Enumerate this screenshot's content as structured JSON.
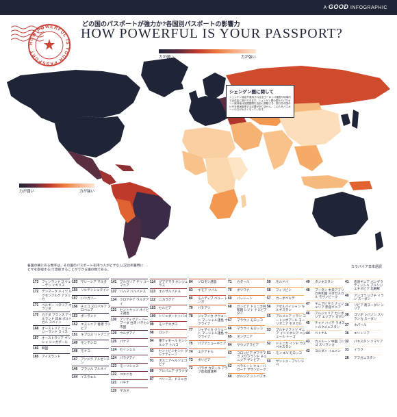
{
  "brand": {
    "prefix": "A",
    "name": "GOOD",
    "suffix": "INFOGRAPHIC"
  },
  "header": {
    "title_jp": "どの国のパスポートが強力か?各国別パスポートの影響力",
    "title_en": "HOW POWERFUL IS YOUR PASSPORT?"
  },
  "stamp": {
    "text": "HOW POWERFUL IS YOUR PASSPORT"
  },
  "scale": {
    "weak": "力が弱い",
    "strong": "力が強い"
  },
  "schengen": {
    "title": "シェンゲン圏に関して",
    "body": "シェンゲン協定が適用される全ヨーロッパ諸国や地域内では自由に旅行できます。シェンゲン圏の国々のパスポート保持者は加盟国間を自由に移動でき、旅行先の国のビザを別途取得する必要がありません。このためパスポートの力が大きくなっています。"
  },
  "intro": "各国の横にある数字は、その国のパスポートを持つ人がビザなし(又は到着時にビザを取得する)で渡航することができる国の数である。",
  "credit": "カラパイア日本語訳",
  "ranks": [
    {
      "col": 0,
      "items": [
        {
          "n": "173",
          "names": "フィンランド スウェーデン イギリス",
          "c": "#1f2437"
        },
        {
          "n": "172",
          "names": "デンマーク ドイツ ルクセンブルグ アメリカ",
          "c": "#1f2437"
        },
        {
          "n": "171",
          "names": "ベルギー イタリア オランダ",
          "c": "#1f2437"
        },
        {
          "n": "170",
          "names": "カナダ フランス アイルランド 日本 ポルトガル スペイン",
          "c": "#1f2437"
        },
        {
          "n": "168",
          "names": "オーストリア ニュージーランド スイス",
          "c": "#1f2437"
        },
        {
          "n": "167",
          "names": "オーストラリア ギリシャ シンガポール",
          "c": "#1f2437"
        },
        {
          "n": "166",
          "names": "韓国",
          "c": "#1f2437"
        },
        {
          "n": "165",
          "names": "アイスランド",
          "c": "#1f2437"
        }
      ]
    },
    {
      "col": 1,
      "items": [
        {
          "n": "153",
          "names": "マレーシア マルタ",
          "c": "#1f2437"
        },
        {
          "n": "150",
          "names": "リヒテンシュタイン",
          "c": "#1f2437"
        },
        {
          "n": "157",
          "names": "ハンガリー",
          "c": "#1f2437"
        },
        {
          "n": "156",
          "names": "チェコ スロバキア スロベニア",
          "c": "#2b2a45"
        },
        {
          "n": "153",
          "names": "ポーランド",
          "c": "#2b2a45"
        },
        {
          "n": "152",
          "names": "エストニア 香港 ラトビア",
          "c": "#2b2a45"
        },
        {
          "n": "151",
          "names": "キプロス リトアニア",
          "c": "#3a2b48"
        },
        {
          "n": "149",
          "names": "モンテシロ",
          "c": "#3a2b48"
        },
        {
          "n": "148",
          "names": "モナコ",
          "c": "#3a2b48"
        },
        {
          "n": "147",
          "names": "アンドラ アルゼンチン",
          "c": "#3a2b48"
        },
        {
          "n": "146",
          "names": "ブラジル ブルネイ",
          "c": "#3a2b48"
        },
        {
          "n": "144",
          "names": "イスラエル",
          "c": "#3a2b48"
        }
      ]
    },
    {
      "col": 2,
      "items": [
        {
          "n": "141",
          "names": "ブルガリア チリ ルーマニア",
          "c": "#4a2c45"
        },
        {
          "n": "137",
          "names": "バハマ バルバドス",
          "c": "#4a2c45"
        },
        {
          "n": "134",
          "names": "クロアチア ウルグアイ",
          "c": "#4a2c45"
        },
        {
          "n": "131",
          "names": "セントキッツ ネイビス諸島",
          "c": "#5b2d40"
        },
        {
          "n": "130",
          "names": "アンティグア・バーブーダ 台湾 バチカン市国",
          "c": "#5b2d40"
        },
        {
          "n": "129",
          "names": "ウルグアイ",
          "c": "#5b2d40"
        },
        {
          "n": "125",
          "names": "パナマ",
          "c": "#6a2e3c"
        },
        {
          "n": "124",
          "names": "セイシェル",
          "c": "#6a2e3c"
        },
        {
          "n": "124",
          "names": "パラグアイ",
          "c": "#6a2e3c"
        },
        {
          "n": "123",
          "names": "モーリシャス",
          "c": "#6a2e3c"
        },
        {
          "n": "122",
          "names": "ユエニカ",
          "c": "#6a2e3c"
        },
        {
          "n": "121",
          "names": "バチナ",
          "c": "#7a2f38"
        },
        {
          "n": "119",
          "names": "マカオ",
          "c": "#7a2f38"
        }
      ]
    },
    {
      "col": 3,
      "items": [
        {
          "n": "114",
          "names": "グアテマラ ホンジュラス",
          "c": "#8e3033"
        },
        {
          "n": "113",
          "names": "エルサルバドル",
          "c": "#8e3033"
        },
        {
          "n": "112",
          "names": "ニカラグア",
          "c": "#8e3033"
        },
        {
          "n": "103",
          "names": "セルビア",
          "c": "#a0332f"
        },
        {
          "n": "100",
          "names": "トリニダードトバゴ",
          "c": "#a0332f"
        },
        {
          "n": "99",
          "names": "モンテネグロ",
          "c": "#b0352c"
        },
        {
          "n": "98",
          "names": "ロシア",
          "c": "#b0352c"
        },
        {
          "n": "94",
          "names": "東ティモール セントルシア トルコ",
          "c": "#b0352c"
        },
        {
          "n": "93",
          "names": "セントビンセント グレナディーン",
          "c": "#c03a2b"
        },
        {
          "n": "91",
          "names": "ボスニアヘルツェゴビナ",
          "c": "#c03a2b"
        },
        {
          "n": "88",
          "names": "アルバニア グラナダ",
          "c": "#c03a2b"
        },
        {
          "n": "87",
          "names": "ベリーズ、ドミニカ",
          "c": "#c03a2b"
        }
      ]
    },
    {
      "col": 4,
      "items": [
        {
          "n": "84",
          "names": "ソロモン諸島",
          "c": "#d04a2c"
        },
        {
          "n": "83",
          "names": "ギモア ツバル",
          "c": "#d04a2c"
        },
        {
          "n": "80",
          "names": "モルディブ ベルー トンガ",
          "c": "#d04a2c"
        },
        {
          "n": "79",
          "names": "バヌアツ",
          "c": "#d9582f"
        },
        {
          "n": "78",
          "names": "ジャマイカ クウェート マーシャル諸島 ウクライナ",
          "c": "#d9582f"
        },
        {
          "n": "77",
          "names": "ジャマイカ クウェート マーシャル諸島 ウクライナ",
          "c": "#e06432"
        },
        {
          "n": "75",
          "names": "パプアニューギニア",
          "c": "#e06432"
        },
        {
          "n": "74",
          "names": "エクアドル",
          "c": "#e06432"
        },
        {
          "n": "73",
          "names": "ボリビア",
          "c": "#e67236"
        },
        {
          "n": "72",
          "names": "パラオ カタール アラブ首長国連邦",
          "c": "#e67236"
        }
      ]
    },
    {
      "col": 5,
      "items": [
        {
          "n": "71",
          "names": "カタール",
          "c": "#ea7c3a"
        },
        {
          "n": "70",
          "names": "ボツワナ",
          "c": "#ea7c3a"
        },
        {
          "n": "69",
          "names": "バーレーン",
          "c": "#ea7c3a"
        },
        {
          "n": "68",
          "names": "ガンビア ドミニカ共和国 レソト ナミビア タイ",
          "c": "#ee8640"
        },
        {
          "n": "67",
          "names": "マラウイ モロッコ",
          "c": "#ee8640"
        },
        {
          "n": "66",
          "names": "マラウイ モロッコ",
          "c": "#f08f48"
        },
        {
          "n": "65",
          "names": "タンザニア",
          "c": "#f08f48"
        },
        {
          "n": "64",
          "names": "サウジアラビア",
          "c": "#f29850"
        },
        {
          "n": "63",
          "names": "コロンビア グアテマラ スワジランド チュニジア ザンビア",
          "c": "#f29850"
        },
        {
          "n": "62",
          "names": "ベラルーシ キューバ ガーナ サザンビーク",
          "c": "#f4a15a"
        },
        {
          "n": "60",
          "names": "グルジア ジンバブエ",
          "c": "#f4a15a"
        }
      ]
    },
    {
      "col": 6,
      "items": [
        {
          "n": "59",
          "names": "モルドバ",
          "c": "#f5aa66"
        },
        {
          "n": "58",
          "names": "フィリピン",
          "c": "#f5aa66"
        },
        {
          "n": "57",
          "names": "カーボベルデ",
          "c": "#f6b272"
        },
        {
          "n": "56",
          "names": "アゼルバイジャン キルギスタン",
          "c": "#f6b272"
        },
        {
          "n": "55",
          "names": "アルメニア イラン コートジボアール モーリタニア セネガル",
          "c": "#f7ba7e"
        },
        {
          "n": "53",
          "names": "ブルキナファソ ギニア インドネシア ニジェール トーゴ",
          "c": "#f7ba7e"
        },
        {
          "n": "52",
          "names": "ドミニカ インド ウズベキスタン",
          "c": "#f8c28a"
        },
        {
          "n": "51",
          "names": "モンゴル モロッコ",
          "c": "#f8c28a"
        },
        {
          "n": "50",
          "names": "サントメ・プリンシペ",
          "c": "#f9c996"
        }
      ]
    },
    {
      "col": 7,
      "items": [
        {
          "n": "49",
          "names": "タジキスタン",
          "c": "#f9c996"
        },
        {
          "n": "48",
          "names": "ブータン 中央アフリカ共和国 マダガスカル モザンビーク",
          "c": "#fad0a2"
        },
        {
          "n": "47",
          "names": "ギニアビサウ ナイジェリア 赤道ギニア",
          "c": "#fad0a2"
        },
        {
          "n": "46",
          "names": "アルジェリア カンボジア エジプト ガボン",
          "c": "#fbd7ae"
        },
        {
          "n": "45",
          "names": "チャド ハイチ ラオス トルクメニスタン",
          "c": "#fbd7ae"
        },
        {
          "n": "44",
          "names": "ベトナム",
          "c": "#fcdeba"
        },
        {
          "n": "43",
          "names": "カメルーン 中国 コンゴ スリランカ",
          "c": "#fcdeba"
        },
        {
          "n": "42",
          "names": "ヨルダン イエメン",
          "c": "#fde5c6"
        }
      ]
    },
    {
      "col": 8,
      "items": [
        {
          "n": "41",
          "names": "赤道ギニア バングラディッシュ ブルンジ エチオピア 北朝鮮",
          "c": "#fde5c6"
        },
        {
          "n": "40",
          "names": "アンゴラ ジブチ イラン スーダン",
          "c": "#fde9d0"
        },
        {
          "n": "39",
          "names": "リビア 南スーダン シリア",
          "c": "#fde9d0"
        },
        {
          "n": "38",
          "names": "コソボ レバノン スリランカ スーダン",
          "c": "#feedd8"
        },
        {
          "n": "37",
          "names": "ネパール",
          "c": "#feedd8"
        },
        {
          "n": "36",
          "names": "エリトリア",
          "c": "#feefdc"
        },
        {
          "n": "32",
          "names": "パキスタン ソマリア",
          "c": "#feefdc"
        },
        {
          "n": "31",
          "names": "イラク",
          "c": "#fff1e0"
        },
        {
          "n": "28",
          "names": "アフガニスタン",
          "c": "#fff1e0"
        }
      ]
    }
  ]
}
